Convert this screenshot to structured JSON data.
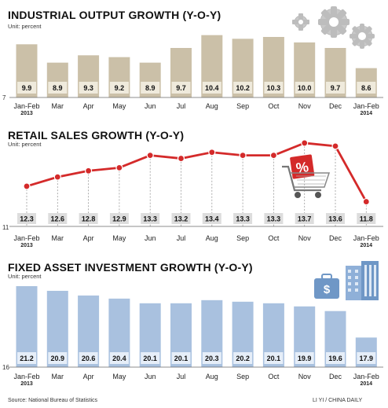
{
  "charts": [
    {
      "title": "INDUSTRIAL OUTPUT GROWTH (Y-O-Y)",
      "unit": "Unit: percent",
      "axis_min_label": "7",
      "icon": "gears-icon"
    },
    {
      "title": "RETAIL SALES GROWTH (Y-O-Y)",
      "unit": "Unit: percent",
      "axis_min_label": "11",
      "icon": "shopping-cart-percent-icon"
    },
    {
      "title": "FIXED ASSET INVESTMENT GROWTH (Y-O-Y)",
      "unit": "Unit: percent",
      "axis_min_label": "16",
      "icon": "briefcase-dollar-and-building-icon"
    }
  ],
  "months": [
    {
      "m": "Jan-Feb",
      "y": "2013"
    },
    {
      "m": "Mar",
      "y": ""
    },
    {
      "m": "Apr",
      "y": ""
    },
    {
      "m": "May",
      "y": ""
    },
    {
      "m": "Jun",
      "y": ""
    },
    {
      "m": "Jul",
      "y": ""
    },
    {
      "m": "Aug",
      "y": ""
    },
    {
      "m": "Sep",
      "y": ""
    },
    {
      "m": "Oct",
      "y": ""
    },
    {
      "m": "Nov",
      "y": ""
    },
    {
      "m": "Dec",
      "y": ""
    },
    {
      "m": "Jan-Feb",
      "y": "2014"
    }
  ],
  "chart_data": [
    {
      "type": "bar",
      "title": "INDUSTRIAL OUTPUT GROWTH (Y-O-Y)",
      "ylabel": "Unit: percent",
      "ylim": [
        7,
        10.6
      ],
      "values": [
        9.9,
        8.9,
        9.3,
        9.2,
        8.9,
        9.7,
        10.4,
        10.2,
        10.3,
        10.0,
        9.7,
        8.6
      ],
      "value_labels": [
        "9.9",
        "8.9",
        "9.3",
        "9.2",
        "8.9",
        "9.7",
        "10.4",
        "10.2",
        "10.3",
        "10.0",
        "9.7",
        "8.6"
      ],
      "colors": {
        "bar": "#cbc0a8",
        "label_box": "#efeadc"
      }
    },
    {
      "type": "line",
      "title": "RETAIL SALES GROWTH (Y-O-Y)",
      "ylabel": "Unit: percent",
      "ylim": [
        11,
        13.8
      ],
      "values": [
        12.3,
        12.6,
        12.8,
        12.9,
        13.3,
        13.2,
        13.4,
        13.3,
        13.3,
        13.7,
        13.6,
        11.8
      ],
      "value_labels": [
        "12.3",
        "12.6",
        "12.8",
        "12.9",
        "13.3",
        "13.2",
        "13.4",
        "13.3",
        "13.3",
        "13.7",
        "13.6",
        "11.8"
      ],
      "colors": {
        "line": "#d42a2a",
        "box": "#dddddd"
      }
    },
    {
      "type": "bar",
      "title": "FIXED ASSET INVESTMENT GROWTH (Y-O-Y)",
      "ylabel": "Unit: percent",
      "ylim": [
        16,
        21.2
      ],
      "values": [
        21.2,
        20.9,
        20.6,
        20.4,
        20.1,
        20.1,
        20.3,
        20.2,
        20.1,
        19.9,
        19.6,
        17.9
      ],
      "value_labels": [
        "21.2",
        "20.9",
        "20.6",
        "20.4",
        "20.1",
        "20.1",
        "20.3",
        "20.2",
        "20.1",
        "19.9",
        "19.6",
        "17.9"
      ],
      "colors": {
        "bar": "#a9c1df",
        "label_box": "#e6eef8"
      }
    }
  ],
  "footer": {
    "source": "Source: National Bureau of Statistics",
    "credit": "LI YI / CHINA DAILY"
  }
}
